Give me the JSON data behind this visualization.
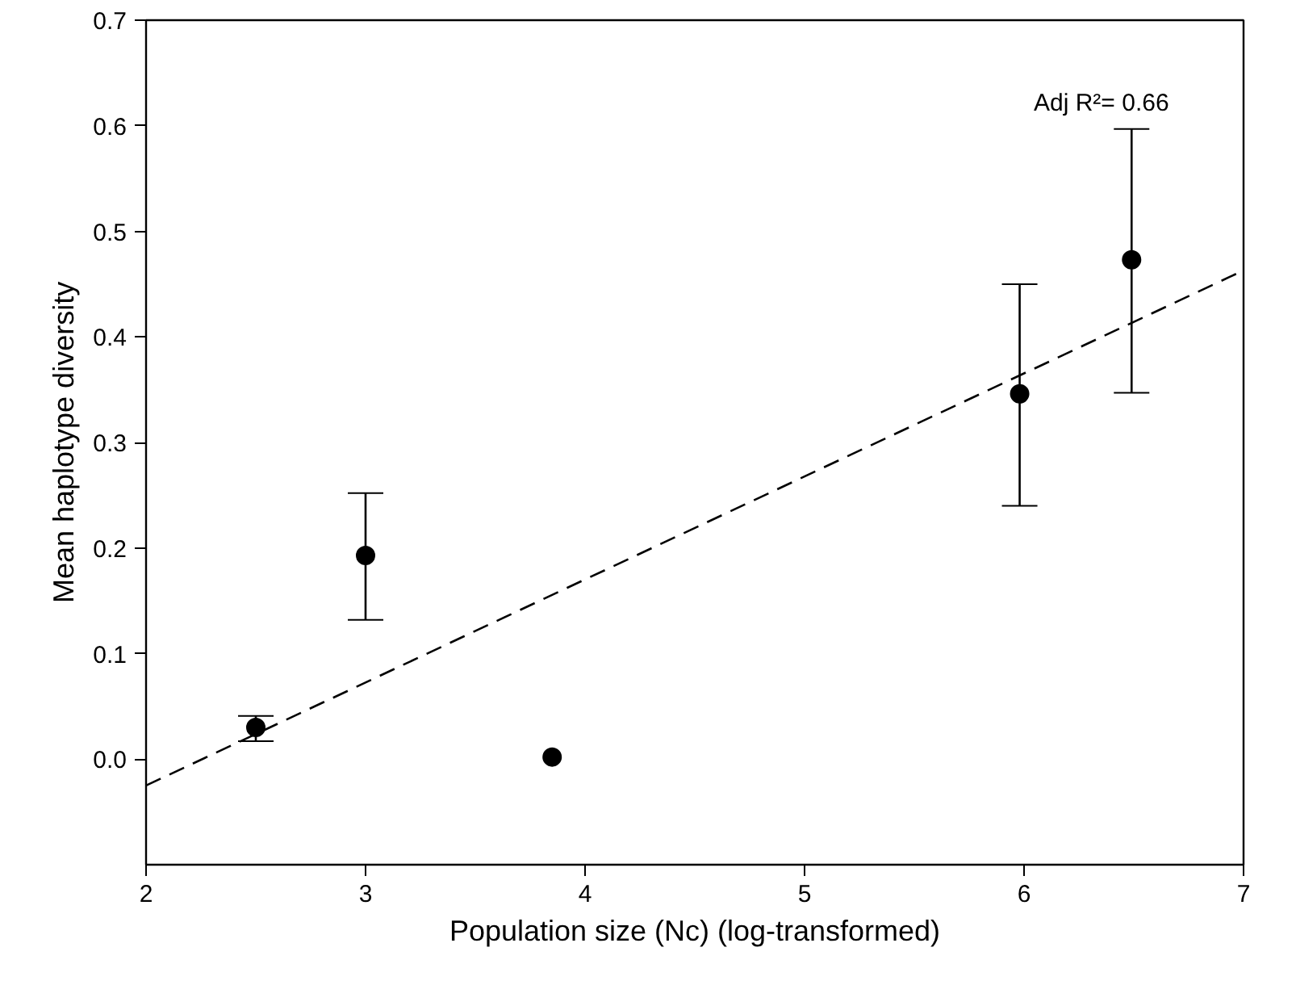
{
  "chart_data": {
    "type": "scatter",
    "xlabel": "Population size (Nc) (log-transformed)",
    "ylabel": "Mean haplotype diversity",
    "xlim": [
      2,
      7
    ],
    "ylim": [
      -0.1,
      0.7
    ],
    "xticks": [
      2,
      3,
      4,
      5,
      6,
      7
    ],
    "yticks": [
      {
        "value": 0,
        "label": "0.0"
      },
      0.1,
      0.2,
      0.3,
      0.4,
      0.5,
      0.6,
      0.7
    ],
    "grid": false,
    "marker": "circle",
    "annotations": [
      "Adj R²= 0.66"
    ],
    "series": [
      {
        "color": "#000000",
        "x": [
          2.5,
          3.0,
          3.85,
          5.98,
          6.49
        ],
        "values": [
          0.03,
          0.193,
          0.002,
          0.346,
          0.473
        ],
        "errors": [
          [
            0.017,
            0.041
          ],
          [
            0.132,
            0.252
          ],
          null,
          [
            0.24,
            0.45
          ],
          [
            0.347,
            0.597
          ]
        ]
      },
      {
        "type": "line",
        "color": "#000000",
        "line_style": "dashed",
        "marker": "none",
        "x": [
          2,
          7
        ],
        "values": [
          -0.025,
          0.463
        ]
      }
    ]
  }
}
